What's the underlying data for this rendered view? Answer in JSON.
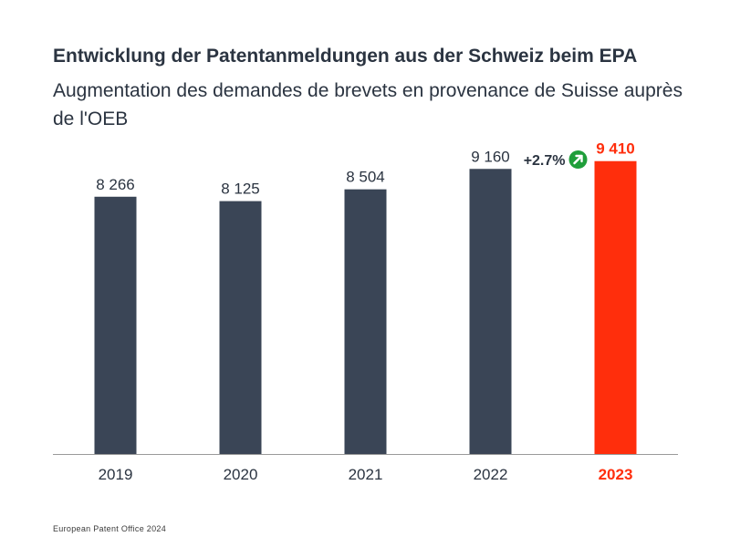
{
  "header": {
    "title": "Entwicklung der Patentanmeldungen aus der Schweiz beim EPA",
    "subtitle": "Augmentation des demandes de brevets en provenance de Suisse auprès de l'OEB"
  },
  "chart_data": {
    "type": "bar",
    "title": "Entwicklung der Patentanmeldungen aus der Schweiz beim EPA",
    "subtitle": "Augmentation des demandes de brevets en provenance de Suisse auprès de l'OEB",
    "categories": [
      "2019",
      "2020",
      "2021",
      "2022",
      "2023"
    ],
    "values": [
      8266,
      8125,
      8504,
      9160,
      9410
    ],
    "value_labels": [
      "8 266",
      "8 125",
      "8 504",
      "9 160",
      "9 410"
    ],
    "highlight_index": 4,
    "annotation": {
      "text": "+2.7%",
      "icon": "arrow-up-right-icon"
    },
    "xlabel": "",
    "ylabel": "",
    "ylim": [
      0,
      9900
    ],
    "grid": false,
    "colors": {
      "bar": "#3a4556",
      "highlight": "#ff2e0c",
      "annotation_icon": "#1f9e3a",
      "text": "#2b3441",
      "axis": "#9a9a9a"
    }
  },
  "footer": {
    "source": "European Patent Office 2024"
  }
}
